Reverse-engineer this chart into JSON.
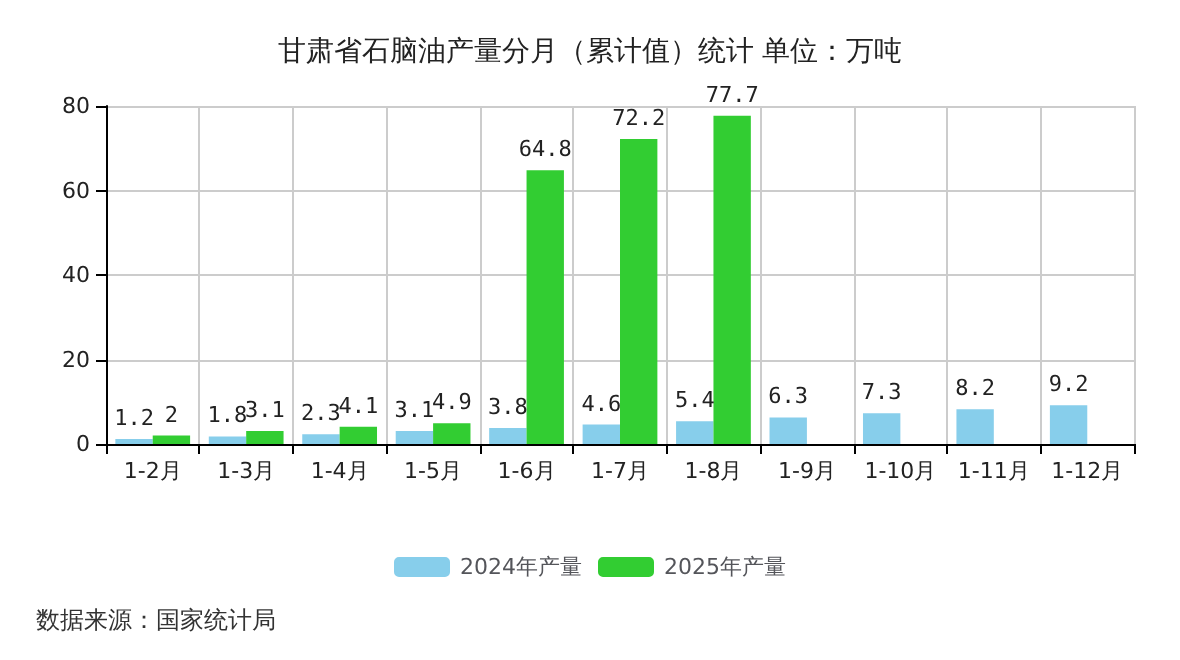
{
  "chart_data": {
    "type": "bar",
    "title": "甘肃省石脑油产量分月（累计值）统计 单位：万吨",
    "categories": [
      "1-2月",
      "1-3月",
      "1-4月",
      "1-5月",
      "1-6月",
      "1-7月",
      "1-8月",
      "1-9月",
      "1-10月",
      "1-11月",
      "1-12月"
    ],
    "series": [
      {
        "name": "2024年产量",
        "color": "#87ceeb",
        "values": [
          1.2,
          1.8,
          2.3,
          3.1,
          3.8,
          4.6,
          5.4,
          6.3,
          7.3,
          8.2,
          9.2
        ]
      },
      {
        "name": "2025年产量",
        "color": "#32cd32",
        "values": [
          2,
          3.1,
          4.1,
          4.9,
          64.8,
          72.2,
          77.7,
          null,
          null,
          null,
          null
        ]
      }
    ],
    "ylim": [
      0,
      80
    ],
    "yticks": [
      0,
      20,
      40,
      60,
      80
    ],
    "grid": true,
    "legend": "bottom",
    "data_labels": true,
    "annotations": [
      "数据来源：国家统计局"
    ]
  }
}
